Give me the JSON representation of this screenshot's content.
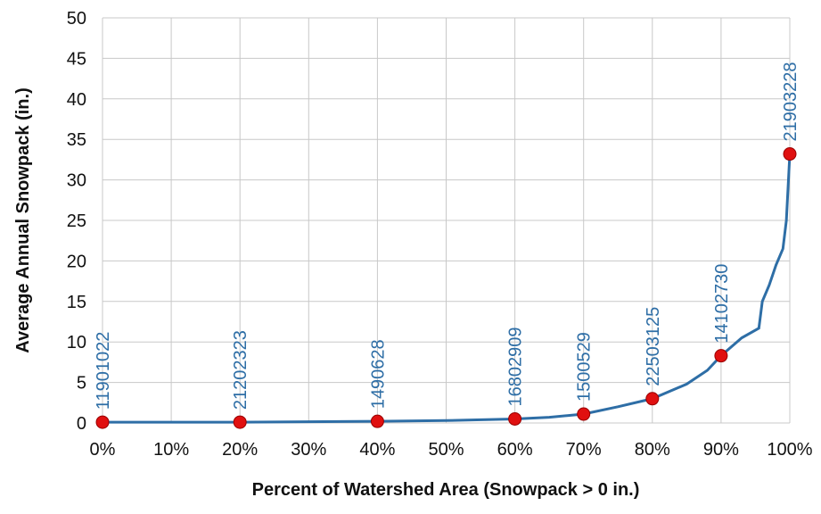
{
  "chart_data": {
    "type": "line",
    "xlabel": "Percent of Watershed Area (Snowpack > 0 in.)",
    "ylabel": "Average Annual Snowpack (in.)",
    "xlim": [
      0,
      100
    ],
    "xticks": [
      {
        "value": 0,
        "label": "0%"
      },
      {
        "value": 10,
        "label": "10%"
      },
      {
        "value": 20,
        "label": "20%"
      },
      {
        "value": 30,
        "label": "30%"
      },
      {
        "value": 40,
        "label": "40%"
      },
      {
        "value": 50,
        "label": "50%"
      },
      {
        "value": 60,
        "label": "60%"
      },
      {
        "value": 70,
        "label": "70%"
      },
      {
        "value": 80,
        "label": "80%"
      },
      {
        "value": 90,
        "label": "90%"
      },
      {
        "value": 100,
        "label": "100%"
      }
    ],
    "ylim": [
      0,
      50
    ],
    "yticks": [
      0,
      5,
      10,
      15,
      20,
      25,
      30,
      35,
      40,
      45,
      50
    ],
    "grid": true,
    "series": [
      {
        "color": "#2e6ea6",
        "x": [
          0,
          20,
          40,
          50,
          60,
          65,
          70,
          75,
          80,
          85,
          88,
          90,
          93,
          95.5,
          96,
          97,
          98,
          99,
          99.5,
          100
        ],
        "values": [
          0.1,
          0.1,
          0.2,
          0.3,
          0.5,
          0.7,
          1.1,
          2.0,
          3.0,
          4.8,
          6.5,
          8.3,
          10.5,
          11.7,
          15,
          17,
          19.5,
          21.5,
          25,
          33.2
        ]
      },
      {
        "color": "#e01010",
        "marker": true,
        "x": [
          0,
          20,
          40,
          60,
          70,
          80,
          90,
          100
        ],
        "values": [
          0.1,
          0.1,
          0.2,
          0.5,
          1.1,
          3.0,
          8.3,
          33.2
        ],
        "labels": [
          "11901022",
          "21202323",
          "1490628",
          "16802909",
          "1500529",
          "22503125",
          "14102730",
          "21903228"
        ]
      }
    ]
  }
}
